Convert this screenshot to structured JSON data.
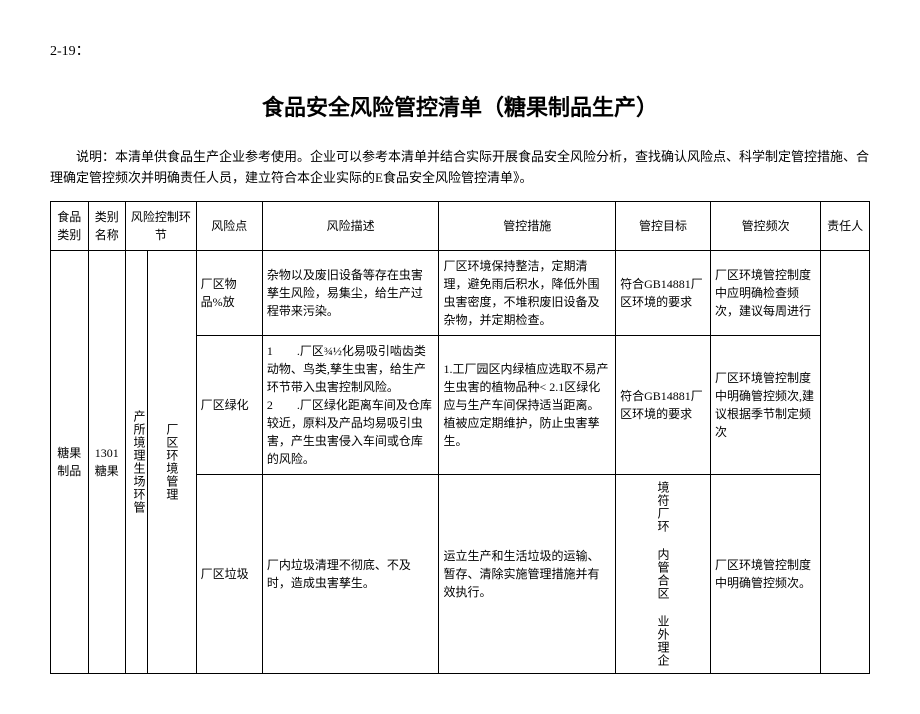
{
  "pageNumber": "2-19：",
  "title": "食品安全风险管控清单（糖果制品生产）",
  "description": "说明：本清单供食品生产企业参考使用。企业可以参考本清单并结合实际开展食品安全风险分析，查找确认风险点、科学制定管控措施、合理确定管控频次并明确责任人员，建立符合本企业实际的E食品安全风险管控清单》。",
  "headers": {
    "foodCategory": "食品类别",
    "categoryName": "类别名称",
    "riskControlLink": "风险控制环节",
    "riskPoint": "风险点",
    "riskDesc": "风险描述",
    "controlMeasure": "管控措施",
    "controlTarget": "管控目标",
    "controlFreq": "管控频次",
    "responsible": "责任人"
  },
  "foodCategory": "糖果制品",
  "categoryName": "1301糖果",
  "linkGroup1": "产所境理生场环管",
  "linkGroup2": "厂区环境管理",
  "rows": [
    {
      "riskPoint": "厂区物品%放",
      "riskDesc": "杂物以及废旧设备等存在虫害孳生风险，易集尘，给生产过程带来污染。",
      "controlMeasure": "厂区环境保持整洁，定期清理，避免雨后积水，降低外围虫害密度，不堆积废旧设备及杂物，并定期检查。",
      "controlTarget": "符合GB14881厂区环境的要求",
      "controlFreq": "厂区环境管控制度中应明确检查频次，建议每周进行"
    },
    {
      "riskPoint": "厂区绿化",
      "riskDesc": "1　　.厂区¾½化易吸引啮齿类动物、鸟类,孳生虫害，给生产环节带入虫害控制风险。\n2　　.厂区绿化距离车间及仓库较近，原料及产品均易吸引虫害，产生虫害侵入车间或仓库的风险。",
      "controlMeasure": "1.工厂园区内绿植应选取不易产生虫害的植物品种<\n2.1区绿化应与生产车间保持适当距离。植被应定期维护，防止虫害孳生。",
      "controlTarget": "符合GB14881厂区环境的要求",
      "controlFreq": "厂区环境管控制度中明确管控频次,建议根据季节制定频次"
    },
    {
      "riskPoint": "厂区垃圾",
      "riskDesc": "厂内垃圾清理不彻底、不及时，造成虫害孳生。",
      "controlMeasure": "运立生产和生活垃圾的运输、暂存、清除实施管理措施并有效执行。",
      "controlTarget": "境符厂环 内管合区 业外理企",
      "controlFreq": "厂区环境管控制度中明确管控频次。"
    }
  ]
}
